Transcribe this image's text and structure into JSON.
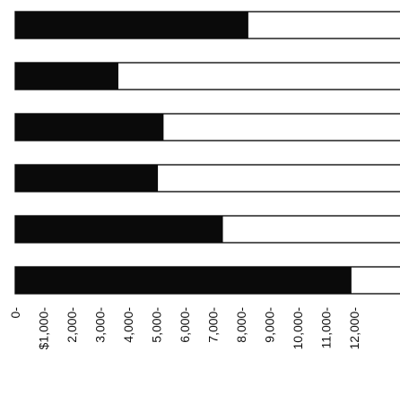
{
  "chart_data": {
    "type": "bar",
    "orientation": "horizontal",
    "categories": [
      "",
      "",
      "",
      "",
      "",
      ""
    ],
    "values": [
      8250,
      3650,
      5250,
      5050,
      7350,
      11900
    ],
    "xlim": [
      0,
      13000
    ],
    "x_ticks": [
      {
        "value": 0,
        "label": "0-"
      },
      {
        "value": 1000,
        "label": "$1,000-"
      },
      {
        "value": 2000,
        "label": "2,000-"
      },
      {
        "value": 3000,
        "label": "3,000-"
      },
      {
        "value": 4000,
        "label": "4,000-"
      },
      {
        "value": 5000,
        "label": "5,000-"
      },
      {
        "value": 6000,
        "label": "6,000-"
      },
      {
        "value": 7000,
        "label": "7,000-"
      },
      {
        "value": 8000,
        "label": "8,000-"
      },
      {
        "value": 9000,
        "label": "9,000-"
      },
      {
        "value": 10000,
        "label": "10,000-"
      },
      {
        "value": 11000,
        "label": "11,000-"
      },
      {
        "value": 12000,
        "label": "12,000-"
      }
    ],
    "title": "",
    "xlabel": "",
    "ylabel": "",
    "grid": false,
    "legend": "none",
    "bar_fill_color": "#0a0a0a",
    "bar_track_color": "#ffffff",
    "outline_color": "#111111"
  }
}
